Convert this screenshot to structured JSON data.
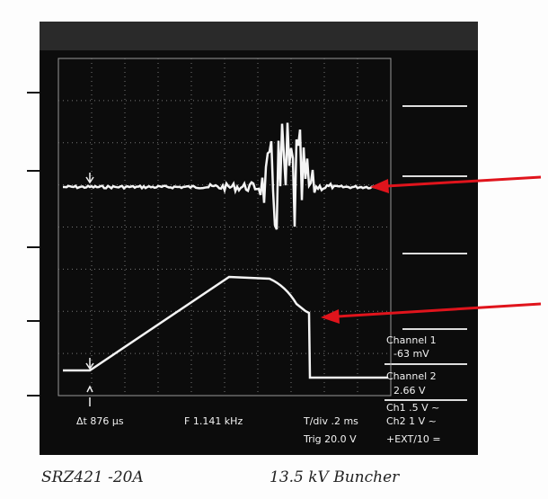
{
  "readout": {
    "channel1_label": "Channel 1",
    "channel1_value": "-63 mV",
    "channel2_label": "Channel 2",
    "channel2_value": "2.66 V",
    "ch1_scale": "Ch1 .5 V ~",
    "ch2_scale": "Ch2 1 V ~",
    "delta_t": "Δt 876 μs",
    "frequency": "F 1.141 kHz",
    "time_div": "T/div .2 ms",
    "trigger": "Trig 20.0 V",
    "trigger_source": "+EXT/10 ="
  },
  "handwriting": {
    "left": "SRZ421 -20A",
    "right": "13.5 kV Buncher"
  }
}
